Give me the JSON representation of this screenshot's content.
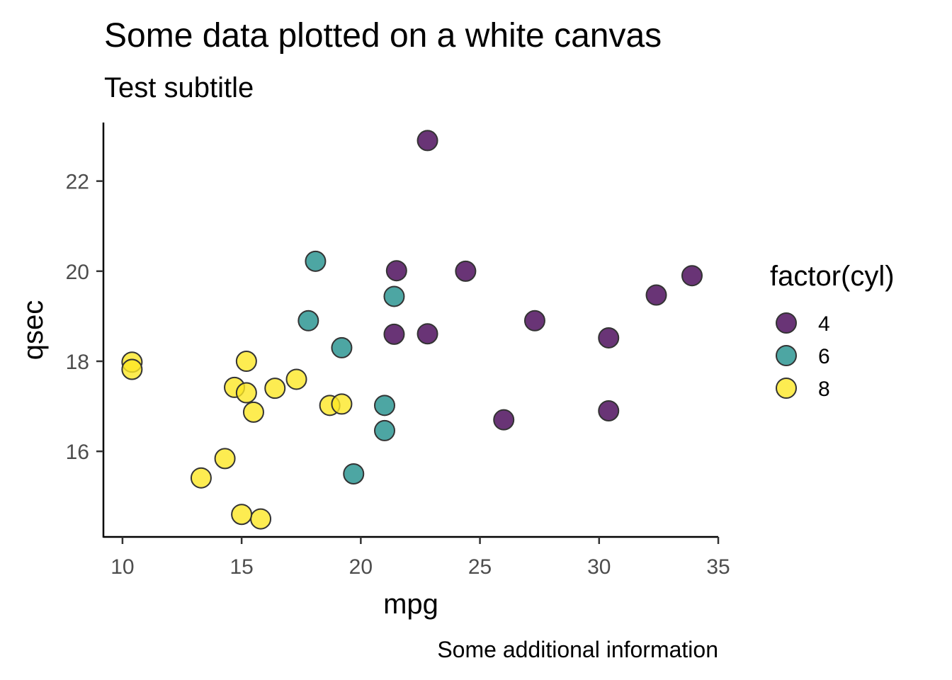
{
  "chart_data": {
    "type": "scatter",
    "title": "Some data plotted on a white canvas",
    "subtitle": "Test subtitle",
    "caption": "Some additional information",
    "xlabel": "mpg",
    "ylabel": "qsec",
    "xlim": [
      9.2,
      35.0
    ],
    "ylim": [
      14.1,
      23.3
    ],
    "xticks": [
      10,
      15,
      20,
      25,
      30,
      35
    ],
    "yticks": [
      16,
      18,
      20,
      22
    ],
    "grid": false,
    "legend": {
      "title": "factor(cyl)",
      "placement": "right"
    },
    "series": [
      {
        "name": "4",
        "color": "#440154",
        "points": [
          [
            22.8,
            18.61
          ],
          [
            24.4,
            20.0
          ],
          [
            22.8,
            22.9
          ],
          [
            32.4,
            19.47
          ],
          [
            30.4,
            18.52
          ],
          [
            33.9,
            19.9
          ],
          [
            21.5,
            20.01
          ],
          [
            27.3,
            18.9
          ],
          [
            26.0,
            16.7
          ],
          [
            30.4,
            16.9
          ],
          [
            21.4,
            18.6
          ]
        ]
      },
      {
        "name": "6",
        "color": "#21908C",
        "points": [
          [
            21.0,
            16.46
          ],
          [
            21.0,
            17.02
          ],
          [
            21.4,
            19.44
          ],
          [
            18.1,
            20.22
          ],
          [
            19.2,
            18.3
          ],
          [
            17.8,
            18.9
          ],
          [
            19.7,
            15.5
          ]
        ]
      },
      {
        "name": "8",
        "color": "#FDE725",
        "points": [
          [
            18.7,
            17.02
          ],
          [
            14.3,
            15.84
          ],
          [
            16.4,
            17.4
          ],
          [
            17.3,
            17.6
          ],
          [
            15.2,
            18.0
          ],
          [
            10.4,
            17.98
          ],
          [
            10.4,
            17.82
          ],
          [
            14.7,
            17.42
          ],
          [
            15.5,
            16.87
          ],
          [
            15.2,
            17.3
          ],
          [
            13.3,
            15.41
          ],
          [
            19.2,
            17.05
          ],
          [
            15.8,
            14.5
          ],
          [
            15.0,
            14.6
          ]
        ]
      }
    ]
  }
}
